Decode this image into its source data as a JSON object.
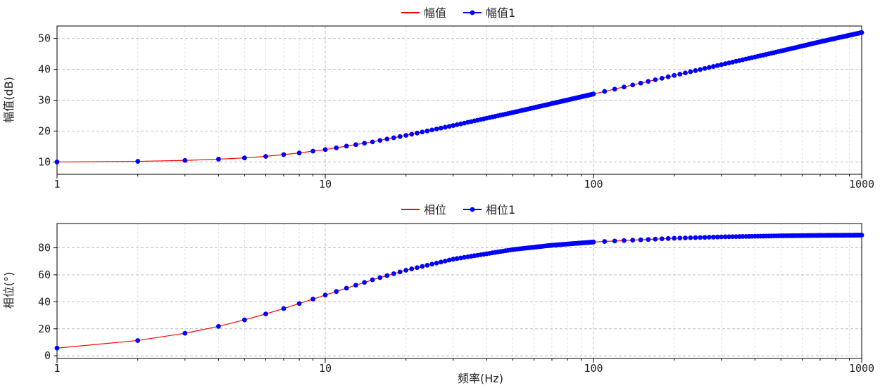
{
  "chart_data": [
    {
      "type": "line",
      "ylabel": "幅值(dB)",
      "xlabel": "",
      "xscale": "log",
      "xlim": [
        1,
        1000
      ],
      "ylim": [
        6,
        54
      ],
      "yticks": [
        10,
        20,
        30,
        40,
        50
      ],
      "xticks": [
        1,
        10,
        100,
        1000
      ],
      "grid": true,
      "legend_position": "top-center",
      "series": [
        {
          "name": "幅值",
          "color": "#ff0000",
          "marker": "none",
          "x": [
            1,
            2,
            3,
            4,
            5,
            6,
            7,
            8,
            9,
            10,
            15,
            20,
            30,
            50,
            70,
            100,
            200,
            300,
            500,
            700,
            1000
          ],
          "y": [
            10.0,
            10.2,
            10.5,
            10.9,
            11.3,
            11.8,
            12.4,
            12.9,
            13.5,
            14.0,
            16.5,
            18.6,
            21.8,
            26.0,
            28.9,
            32.0,
            38.0,
            41.5,
            45.9,
            48.9,
            51.9
          ]
        },
        {
          "name": "幅值1",
          "color": "#0000ff",
          "marker": "circle",
          "x": [
            1,
            2,
            3,
            4,
            5,
            6,
            7,
            8,
            9,
            10,
            15,
            20,
            30,
            50,
            70,
            100,
            200,
            300,
            500,
            700,
            1000
          ],
          "y": [
            10.0,
            10.2,
            10.5,
            10.9,
            11.3,
            11.8,
            12.4,
            12.9,
            13.5,
            14.0,
            16.5,
            18.6,
            21.8,
            26.0,
            28.9,
            32.0,
            38.0,
            41.5,
            45.9,
            48.9,
            51.9
          ]
        }
      ]
    },
    {
      "type": "line",
      "ylabel": "相位(°)",
      "xlabel": "频率(Hz)",
      "xscale": "log",
      "xlim": [
        1,
        1000
      ],
      "ylim": [
        -2,
        98
      ],
      "yticks": [
        0,
        20,
        40,
        60,
        80
      ],
      "xticks": [
        1,
        10,
        100,
        1000
      ],
      "grid": true,
      "legend_position": "top-center",
      "series": [
        {
          "name": "相位",
          "color": "#ff0000",
          "marker": "none",
          "x": [
            1,
            2,
            3,
            4,
            5,
            6,
            7,
            8,
            9,
            10,
            15,
            20,
            30,
            50,
            70,
            100,
            200,
            300,
            500,
            700,
            1000
          ],
          "y": [
            5.7,
            11.3,
            16.7,
            21.8,
            26.6,
            31.0,
            35.0,
            38.7,
            42.0,
            45.0,
            56.3,
            63.4,
            71.6,
            78.7,
            81.9,
            84.3,
            87.1,
            88.1,
            88.9,
            89.2,
            89.4
          ]
        },
        {
          "name": "相位1",
          "color": "#0000ff",
          "marker": "circle",
          "x": [
            1,
            2,
            3,
            4,
            5,
            6,
            7,
            8,
            9,
            10,
            15,
            20,
            30,
            50,
            70,
            100,
            200,
            300,
            500,
            700,
            1000
          ],
          "y": [
            5.7,
            11.3,
            16.7,
            21.8,
            26.6,
            31.0,
            35.0,
            38.7,
            42.0,
            45.0,
            56.3,
            63.4,
            71.6,
            78.7,
            81.9,
            84.3,
            87.1,
            88.1,
            88.9,
            89.2,
            89.4
          ]
        }
      ]
    }
  ]
}
